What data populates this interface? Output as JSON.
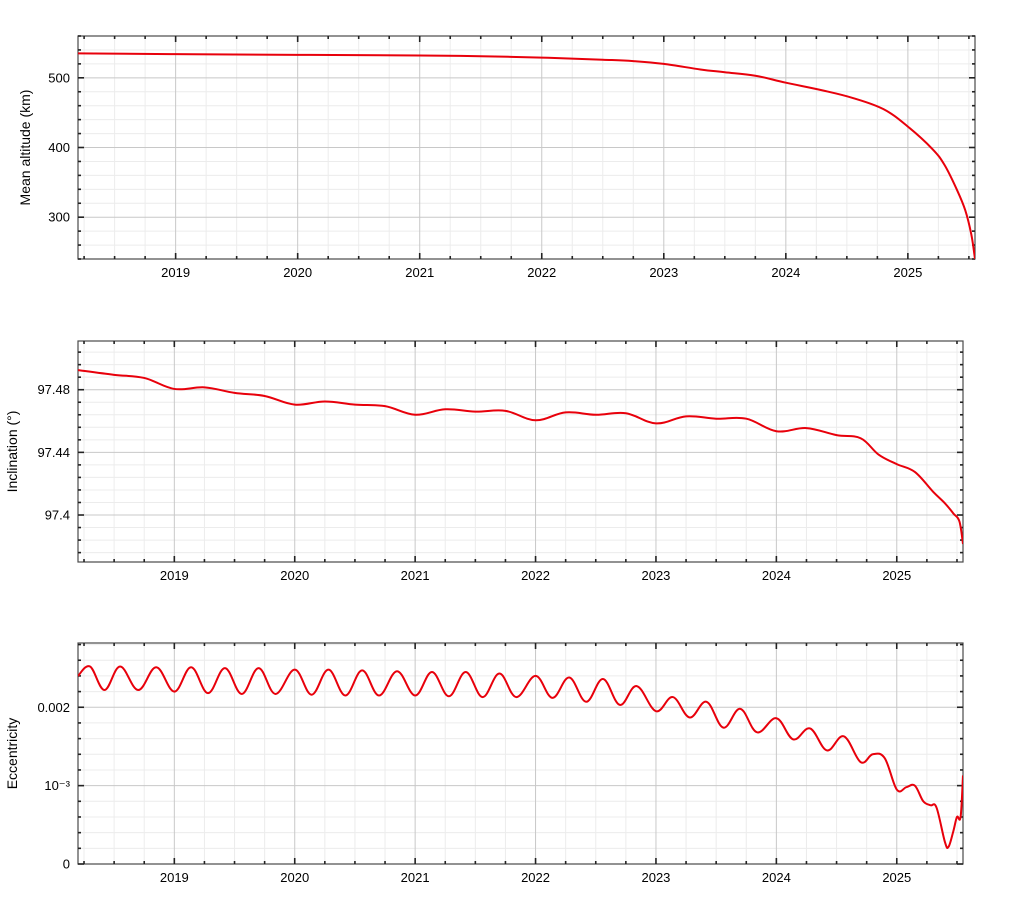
{
  "colors": {
    "line": "#e8000b",
    "grid_major": "#c8c8c8",
    "grid_minor": "#ececec",
    "frame": "#4a4a4a"
  },
  "chart_data": [
    {
      "type": "line",
      "title": "",
      "xlabel": "",
      "ylabel": "Mean altitude (km)",
      "x_unit": "year",
      "xlim": [
        2018.2,
        2025.55
      ],
      "ylim": [
        240,
        560
      ],
      "x_ticks": [
        2019,
        2020,
        2021,
        2022,
        2023,
        2024,
        2025
      ],
      "x_tick_labels": [
        "2019",
        "2020",
        "2021",
        "2022",
        "2023",
        "2024",
        "2025"
      ],
      "y_ticks": [
        300,
        400,
        500
      ],
      "y_tick_labels": [
        "300",
        "400",
        "500"
      ],
      "grid": true,
      "series": [
        {
          "x": [
            2018.2,
            2019.0,
            2020.0,
            2021.0,
            2021.5,
            2022.0,
            2022.5,
            2022.75,
            2023.0,
            2023.3,
            2023.5,
            2023.75,
            2024.0,
            2024.3,
            2024.55,
            2024.8,
            2025.0,
            2025.2,
            2025.3,
            2025.4,
            2025.47,
            2025.52,
            2025.55
          ],
          "y": [
            535,
            534,
            533,
            532,
            531,
            529,
            526,
            524,
            520,
            512,
            508,
            503,
            493,
            482,
            471,
            455,
            430,
            398,
            375,
            340,
            310,
            275,
            240
          ]
        }
      ]
    },
    {
      "type": "line",
      "title": "",
      "xlabel": "",
      "ylabel": "Inclination (°)",
      "x_unit": "year",
      "xlim": [
        2018.2,
        2025.55
      ],
      "ylim": [
        97.37,
        97.5111
      ],
      "x_ticks": [
        2019,
        2020,
        2021,
        2022,
        2023,
        2024,
        2025
      ],
      "x_tick_labels": [
        "2019",
        "2020",
        "2021",
        "2022",
        "2023",
        "2024",
        "2025"
      ],
      "y_ticks": [
        97.4,
        97.44,
        97.48
      ],
      "y_tick_labels": [
        "97.4",
        "97.44",
        "97.48"
      ],
      "grid": true,
      "series": [
        {
          "x": [
            2018.2,
            2018.5,
            2018.75,
            2019.0,
            2019.25,
            2019.5,
            2019.75,
            2020.0,
            2020.25,
            2020.5,
            2020.75,
            2021.0,
            2021.25,
            2021.5,
            2021.75,
            2022.0,
            2022.25,
            2022.5,
            2022.75,
            2023.0,
            2023.25,
            2023.5,
            2023.75,
            2024.0,
            2024.25,
            2024.5,
            2024.7,
            2024.85,
            2025.0,
            2025.15,
            2025.3,
            2025.4,
            2025.47,
            2025.52,
            2025.55
          ],
          "y": [
            97.4925,
            97.4895,
            97.4875,
            97.4805,
            97.4815,
            97.478,
            97.476,
            97.4705,
            97.4725,
            97.4705,
            97.4695,
            97.464,
            97.4675,
            97.466,
            97.4665,
            97.4605,
            97.4655,
            97.464,
            97.465,
            97.4585,
            97.463,
            97.4615,
            97.4615,
            97.4535,
            97.4555,
            97.451,
            97.449,
            97.4385,
            97.4325,
            97.4275,
            97.415,
            97.4075,
            97.401,
            97.396,
            97.3815
          ]
        }
      ]
    },
    {
      "type": "line",
      "title": "",
      "xlabel": "",
      "ylabel": "Eccentricity",
      "x_unit": "year",
      "xlim": [
        2018.2,
        2025.55
      ],
      "ylim": [
        0,
        0.00282
      ],
      "x_ticks": [
        2019,
        2020,
        2021,
        2022,
        2023,
        2024,
        2025
      ],
      "x_tick_labels": [
        "2019",
        "2020",
        "2021",
        "2022",
        "2023",
        "2024",
        "2025"
      ],
      "y_ticks": [
        0,
        0.001,
        0.002
      ],
      "y_tick_labels": [
        "0",
        "10⁻³",
        "0.002"
      ],
      "grid": true,
      "series": [
        {
          "x": [
            2018.2,
            2018.3,
            2018.42,
            2018.55,
            2018.7,
            2018.85,
            2019.0,
            2019.14,
            2019.28,
            2019.42,
            2019.56,
            2019.7,
            2019.84,
            2020.0,
            2020.14,
            2020.28,
            2020.42,
            2020.56,
            2020.7,
            2020.85,
            2021.0,
            2021.14,
            2021.28,
            2021.42,
            2021.56,
            2021.7,
            2021.84,
            2022.0,
            2022.14,
            2022.28,
            2022.42,
            2022.56,
            2022.7,
            2022.84,
            2023.0,
            2023.14,
            2023.28,
            2023.42,
            2023.56,
            2023.7,
            2023.84,
            2024.0,
            2024.14,
            2024.28,
            2024.42,
            2024.56,
            2024.7,
            2024.8,
            2024.9,
            2025.0,
            2025.08,
            2025.15,
            2025.22,
            2025.28,
            2025.33,
            2025.4,
            2025.43,
            2025.47,
            2025.5,
            2025.53,
            2025.55
          ],
          "y": [
            0.0024,
            0.00252,
            0.00222,
            0.00252,
            0.00222,
            0.00251,
            0.0022,
            0.00251,
            0.00218,
            0.0025,
            0.00217,
            0.0025,
            0.00217,
            0.00248,
            0.00216,
            0.00248,
            0.00215,
            0.00247,
            0.00215,
            0.00246,
            0.00215,
            0.00245,
            0.00214,
            0.00245,
            0.00213,
            0.00243,
            0.00213,
            0.0024,
            0.00212,
            0.00238,
            0.00207,
            0.00236,
            0.00203,
            0.00227,
            0.00195,
            0.00213,
            0.00187,
            0.00207,
            0.00174,
            0.00198,
            0.00168,
            0.00186,
            0.00159,
            0.00173,
            0.00145,
            0.00163,
            0.0013,
            0.0014,
            0.00135,
            0.00095,
            0.00098,
            0.001,
            0.0008,
            0.00075,
            0.00072,
            0.00028,
            0.00022,
            0.00042,
            0.0006,
            0.0006,
            0.00113
          ]
        }
      ]
    }
  ]
}
